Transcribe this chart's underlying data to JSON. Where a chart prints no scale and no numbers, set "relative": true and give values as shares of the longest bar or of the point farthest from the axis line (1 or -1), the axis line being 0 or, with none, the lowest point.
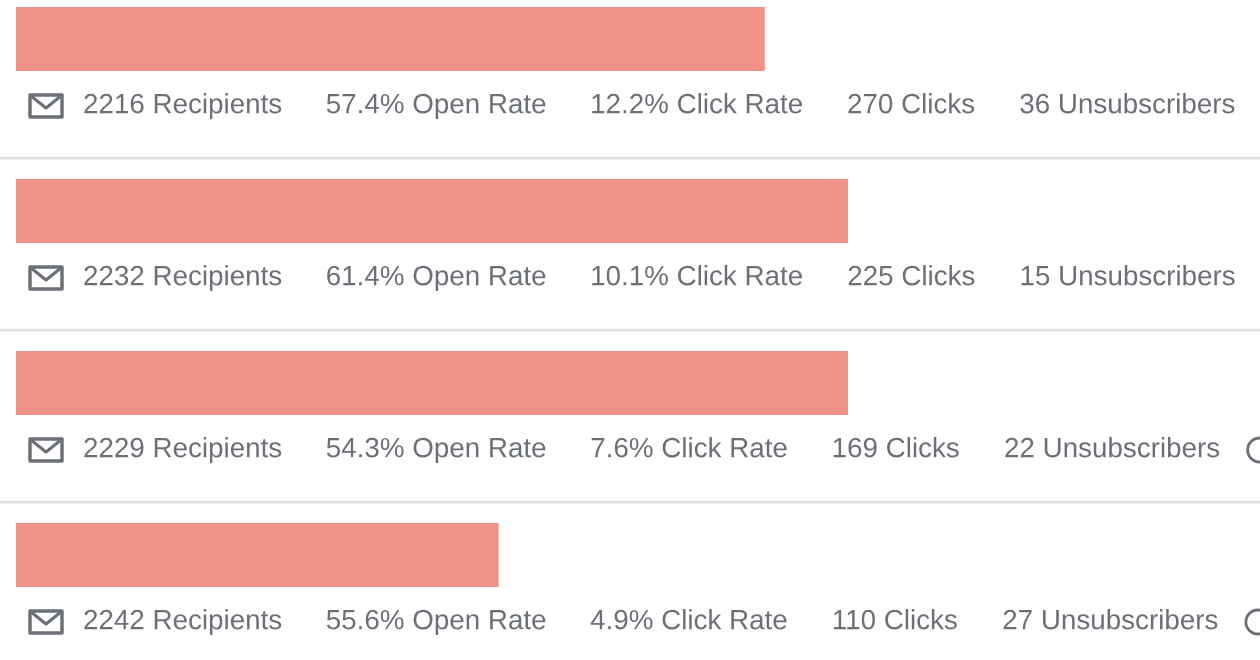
{
  "chart_data": {
    "type": "bar",
    "orientation": "horizontal",
    "relative": true,
    "categories": [
      null,
      null,
      null,
      null
    ],
    "values": [
      0.9,
      1.0,
      1.0,
      0.58
    ],
    "color": "#f09288",
    "annotations": [
      "2216 Recipients",
      "57.4% Open Rate",
      "12.2% Click Rate",
      "270 Clicks",
      "36 Unsubscribers",
      "2232 Recipients",
      "61.4% Open Rate",
      "10.1% Click Rate",
      "225 Clicks",
      "15 Unsubscribers",
      "2229 Recipients",
      "54.3% Open Rate",
      "7.6% Click Rate",
      "169 Clicks",
      "22 Unsubscribers",
      "2242 Recipients",
      "55.6% Open Rate",
      "4.9% Click Rate",
      "110 Clicks",
      "27 Unsubscribers"
    ]
  }
}
